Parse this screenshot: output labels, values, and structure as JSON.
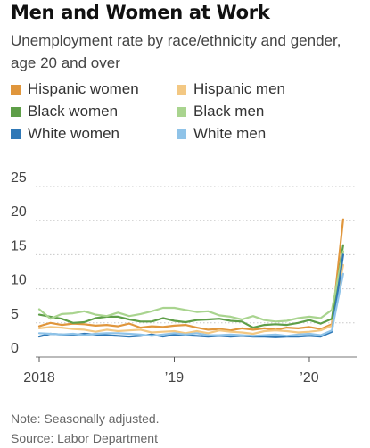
{
  "header": {
    "title": "Men and Women at Work",
    "subtitle": "Unemployment rate by race/ethnicity and gender, age 20 and over"
  },
  "legend": [
    {
      "label": "Hispanic women",
      "color": "#e0963c"
    },
    {
      "label": "Hispanic men",
      "color": "#f3c883"
    },
    {
      "label": "Black women",
      "color": "#5e9e48"
    },
    {
      "label": "Black men",
      "color": "#a9d48f"
    },
    {
      "label": "White women",
      "color": "#2f78b6"
    },
    {
      "label": "White men",
      "color": "#8fc3e8"
    }
  ],
  "notes": {
    "note": "Note: Seasonally adjusted.",
    "source": "Source: Labor Department"
  },
  "chart_data": {
    "type": "line",
    "x_start": "2018-01",
    "x_frequency": "monthly",
    "x_range": [
      "2018-01",
      "2020-04"
    ],
    "x_ticks": [
      {
        "label": "2018",
        "x": "2018-01"
      },
      {
        "label": "’19",
        "x": "2019-01"
      },
      {
        "label": "’20",
        "x": "2020-01"
      }
    ],
    "ylim": [
      0,
      25
    ],
    "yticks": [
      0,
      5,
      10,
      15,
      20,
      25
    ],
    "grid": "horizontal dotted",
    "series": [
      {
        "name": "Hispanic women",
        "color": "#e0963c",
        "values": [
          4.5,
          5.0,
          4.7,
          4.9,
          4.8,
          4.6,
          4.7,
          4.5,
          4.9,
          4.3,
          4.5,
          4.4,
          4.6,
          4.7,
          4.3,
          4.0,
          4.1,
          3.9,
          4.2,
          4.0,
          4.2,
          4.0,
          4.3,
          4.2,
          4.4,
          4.1,
          4.8,
          20.2
        ]
      },
      {
        "name": "Hispanic men",
        "color": "#f3c883",
        "values": [
          4.2,
          4.4,
          4.3,
          4.1,
          4.0,
          3.7,
          4.0,
          3.8,
          3.9,
          4.0,
          3.6,
          3.7,
          3.8,
          3.5,
          3.8,
          3.5,
          3.9,
          3.7,
          3.6,
          3.4,
          3.8,
          3.9,
          3.8,
          3.6,
          3.7,
          3.9,
          4.6,
          13.5
        ]
      },
      {
        "name": "Black women",
        "color": "#5e9e48",
        "values": [
          6.2,
          5.9,
          5.6,
          5.0,
          5.1,
          5.7,
          5.9,
          5.9,
          5.5,
          5.2,
          5.2,
          5.7,
          5.3,
          5.1,
          5.4,
          5.5,
          5.6,
          5.3,
          5.2,
          4.3,
          4.7,
          4.8,
          4.7,
          5.0,
          5.4,
          4.9,
          5.6,
          16.4
        ]
      },
      {
        "name": "Black men",
        "color": "#a9d48f",
        "values": [
          7.0,
          5.6,
          6.3,
          6.4,
          6.7,
          6.2,
          6.0,
          6.5,
          6.0,
          6.3,
          6.7,
          7.2,
          7.2,
          6.9,
          6.6,
          6.7,
          6.1,
          5.9,
          5.5,
          6.0,
          5.4,
          5.2,
          5.3,
          5.7,
          5.9,
          5.7,
          6.9,
          15.5
        ]
      },
      {
        "name": "White women",
        "color": "#2f78b6",
        "values": [
          3.0,
          3.4,
          3.3,
          3.2,
          3.4,
          3.3,
          3.2,
          3.1,
          3.0,
          3.1,
          3.3,
          3.0,
          3.3,
          3.2,
          3.1,
          3.0,
          3.1,
          3.0,
          3.1,
          3.0,
          3.0,
          2.9,
          3.0,
          3.0,
          3.1,
          3.0,
          3.7,
          15.0
        ]
      },
      {
        "name": "White men",
        "color": "#8fc3e8",
        "values": [
          3.5,
          3.4,
          3.3,
          3.4,
          3.2,
          3.4,
          3.5,
          3.5,
          3.4,
          3.3,
          3.1,
          3.3,
          3.5,
          3.3,
          3.5,
          3.2,
          3.2,
          3.3,
          3.2,
          3.1,
          3.2,
          3.3,
          3.1,
          3.3,
          3.4,
          3.2,
          3.9,
          12.2
        ]
      }
    ]
  }
}
